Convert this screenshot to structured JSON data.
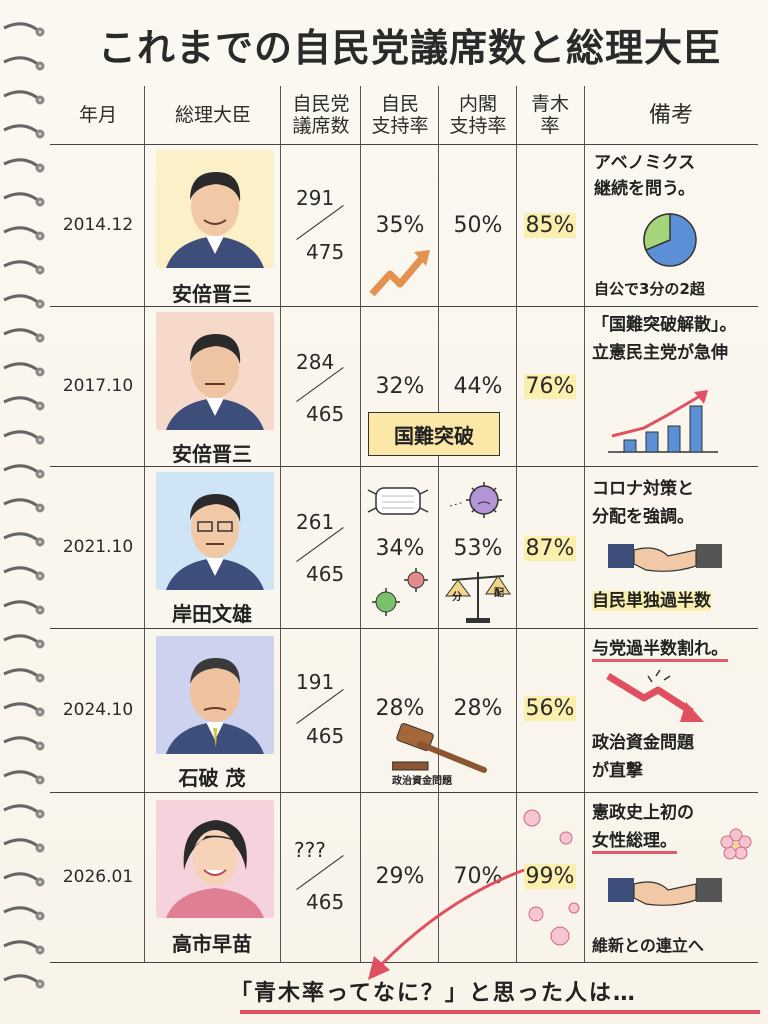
{
  "title": "これまでの自民党議席数と総理大臣",
  "headers": {
    "date": "年月",
    "pm": "総理大臣",
    "seats_l1": "自民党",
    "seats_l2": "議席数",
    "ldp_l1": "自民",
    "ldp_l2": "支持率",
    "cabinet_l1": "内閣",
    "cabinet_l2": "支持率",
    "aoki_l1": "青木",
    "aoki_l2": "率",
    "notes": "備考"
  },
  "rows": [
    {
      "date": "2014.12",
      "pm": "安倍晋三",
      "seats": "291",
      "total": "475",
      "ldp": "35%",
      "cabinet": "50%",
      "aoki": "85%",
      "note1": "アベノミクス",
      "note2": "継続を問う。",
      "note3": "自公で3分の2超"
    },
    {
      "date": "2017.10",
      "pm": "安倍晋三",
      "seats": "284",
      "total": "465",
      "ldp": "32%",
      "cabinet": "44%",
      "aoki": "76%",
      "banner": "国難突破",
      "note1": "「国難突破解散」。",
      "note2": "立憲民主党が急伸"
    },
    {
      "date": "2021.10",
      "pm": "岸田文雄",
      "seats": "261",
      "total": "465",
      "ldp": "34%",
      "cabinet": "53%",
      "aoki": "87%",
      "scale_left": "分",
      "scale_right": "配",
      "note1": "コロナ対策と",
      "note2": "分配を強調。",
      "note3": "自民単独過半数"
    },
    {
      "date": "2024.10",
      "pm": "石破 茂",
      "seats": "191",
      "total": "465",
      "ldp": "28%",
      "cabinet": "28%",
      "aoki": "56%",
      "gavel_label": "政治資金問題",
      "note1": "与党過半数割れ。",
      "note2": "政治資金問題",
      "note3": "が直撃"
    },
    {
      "date": "2026.01",
      "pm": "高市早苗",
      "seats": "???",
      "total": "465",
      "ldp": "29%",
      "cabinet": "70%",
      "aoki": "99%",
      "note1": "憲政史上初の",
      "note2": "女性総理。",
      "note3": "維新との連立へ"
    }
  ],
  "footer": "「青木率ってなに？」と思った人は…",
  "colors": {
    "highlight": "#fbefae",
    "accent_red": "#e05060",
    "line": "#444444"
  },
  "icons": [
    "spiral-binding",
    "arrow-up-icon",
    "pie-chart-icon",
    "bar-chart-icon",
    "mask-icon",
    "virus-icon",
    "scale-icon",
    "gavel-icon",
    "handshake-icon",
    "down-arrow-icon",
    "sakura-icon",
    "curved-arrow-icon"
  ]
}
